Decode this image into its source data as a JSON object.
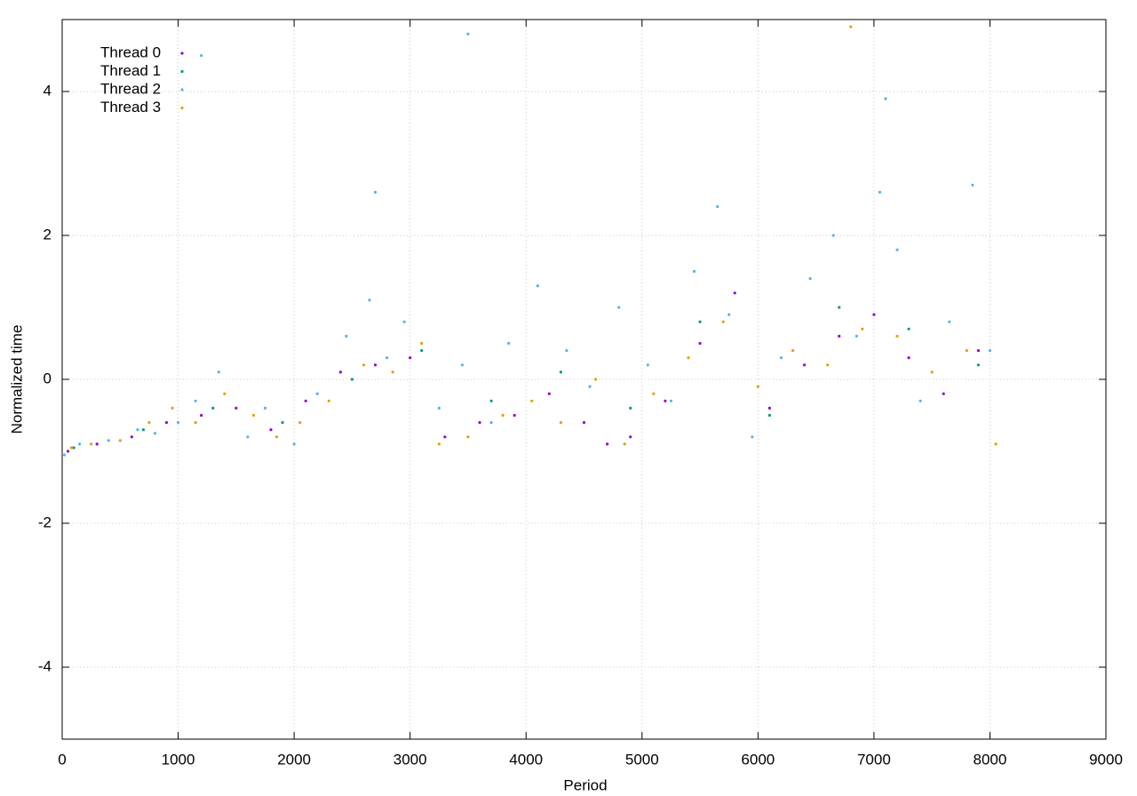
{
  "chart_data": {
    "type": "scatter",
    "x_label": "Period",
    "y_label": "Normalized time",
    "xlim": [
      0,
      9000
    ],
    "xticks": [
      0,
      1000,
      2000,
      3000,
      4000,
      5000,
      6000,
      7000,
      8000,
      9000
    ],
    "ylim": [
      -5,
      5
    ],
    "yticks": [
      -4,
      -2,
      0,
      2,
      4
    ],
    "grid": true,
    "legend": "top-left",
    "series": [
      {
        "name": "Thread 0",
        "color": "#9400d3",
        "x": [
          50,
          300,
          600,
          900,
          1200,
          1500,
          1800,
          2100,
          2400,
          2700,
          3000,
          3300,
          3600,
          3900,
          4200,
          4500,
          4700,
          4900,
          5200,
          5500,
          5800,
          6100,
          6400,
          6700,
          7000,
          7300,
          7600,
          7900
        ],
        "values": [
          -1.0,
          -0.9,
          -0.8,
          -0.6,
          -0.5,
          -0.4,
          -0.7,
          -0.3,
          0.1,
          0.2,
          0.3,
          -0.8,
          -0.6,
          -0.5,
          -0.2,
          -0.6,
          -0.9,
          -0.8,
          -0.3,
          0.5,
          1.2,
          -0.4,
          0.2,
          0.6,
          0.9,
          0.3,
          -0.2,
          0.4
        ]
      },
      {
        "name": "Thread 1",
        "color": "#009e73",
        "x": [
          100,
          700,
          1300,
          1900,
          2500,
          3100,
          3700,
          4300,
          4900,
          5500,
          6100,
          6700,
          7300,
          7900
        ],
        "values": [
          -0.95,
          -0.7,
          -0.4,
          -0.6,
          0,
          0.4,
          -0.3,
          0.1,
          -0.4,
          0.8,
          -0.5,
          1.0,
          0.7,
          0.2
        ]
      },
      {
        "name": "Thread 2",
        "color": "#56b4e9",
        "x": [
          20,
          150,
          400,
          650,
          800,
          1000,
          1150,
          1350,
          1600,
          1750,
          2000,
          2200,
          2450,
          2650,
          2800,
          2950,
          3250,
          3450,
          3700,
          3850,
          4100,
          4350,
          4550,
          4800,
          5050,
          5250,
          5450,
          5650,
          5750,
          5950,
          6200,
          6450,
          6650,
          6850,
          7050,
          7200,
          7400,
          7650,
          7850,
          8000,
          1200,
          3500,
          7100,
          2700
        ],
        "values": [
          -1.05,
          -0.9,
          -0.85,
          -0.7,
          -0.75,
          -0.6,
          -0.3,
          0.1,
          -0.8,
          -0.4,
          -0.9,
          -0.2,
          0.6,
          1.1,
          0.3,
          0.8,
          -0.4,
          0.2,
          -0.6,
          0.5,
          1.3,
          0.4,
          -0.1,
          1.0,
          0.2,
          -0.3,
          1.5,
          2.4,
          0.9,
          -0.8,
          0.3,
          1.4,
          2.0,
          0.6,
          2.6,
          1.8,
          -0.3,
          0.8,
          2.7,
          0.4,
          4.5,
          4.8,
          3.9,
          2.6
        ]
      },
      {
        "name": "Thread 3",
        "color": "#e69f00",
        "x": [
          80,
          250,
          500,
          750,
          950,
          1150,
          1400,
          1650,
          1850,
          2050,
          2300,
          2600,
          2850,
          3100,
          3250,
          3500,
          3800,
          4050,
          4300,
          4600,
          4850,
          5100,
          5400,
          5700,
          6000,
          6300,
          6600,
          6900,
          7200,
          7500,
          7800,
          8050,
          6800
        ],
        "values": [
          -0.95,
          -0.9,
          -0.85,
          -0.6,
          -0.4,
          -0.6,
          -0.2,
          -0.5,
          -0.8,
          -0.6,
          -0.3,
          0.2,
          0.1,
          0.5,
          -0.9,
          -0.8,
          -0.5,
          -0.3,
          -0.6,
          0,
          -0.9,
          -0.2,
          0.3,
          0.8,
          -0.1,
          0.4,
          0.2,
          0.7,
          0.6,
          0.1,
          0.4,
          -0.9,
          4.9
        ]
      }
    ]
  }
}
